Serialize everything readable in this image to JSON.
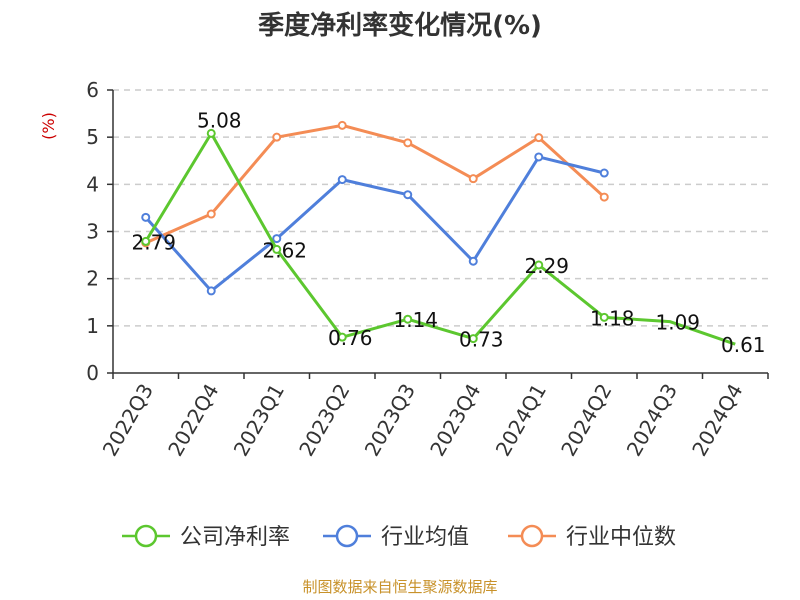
{
  "chart_data": {
    "type": "line",
    "title": "季度净利率变化情况(%)",
    "ylabel": "(%)",
    "ylim": [
      0,
      6
    ],
    "yticks": [
      0,
      1,
      2,
      3,
      4,
      5,
      6
    ],
    "grid": true,
    "legend_position": "bottom",
    "categories": [
      "2022Q3",
      "2022Q4",
      "2023Q1",
      "2023Q2",
      "2023Q3",
      "2023Q4",
      "2024Q1",
      "2024Q2",
      "2024Q3",
      "2024Q4"
    ],
    "series": [
      {
        "name": "公司净利率",
        "color": "#5cc72f",
        "values": [
          2.79,
          5.08,
          2.62,
          0.76,
          1.14,
          0.73,
          2.29,
          1.18,
          1.09,
          0.61
        ],
        "labels": [
          "2.79",
          "5.08",
          "2.62",
          "0.76",
          "1.14",
          "0.73",
          "2.29",
          "1.18",
          "1.09",
          "0.61"
        ]
      },
      {
        "name": "行业均值",
        "color": "#4f7fdb",
        "values": [
          3.3,
          1.74,
          2.85,
          4.1,
          3.78,
          2.37,
          4.58,
          4.24,
          null,
          null
        ]
      },
      {
        "name": "行业中位数",
        "color": "#f48c55",
        "values": [
          2.76,
          3.37,
          5.0,
          5.25,
          4.88,
          4.12,
          4.99,
          3.73,
          null,
          null
        ]
      }
    ]
  },
  "source": "制图数据来自恒生聚源数据库"
}
